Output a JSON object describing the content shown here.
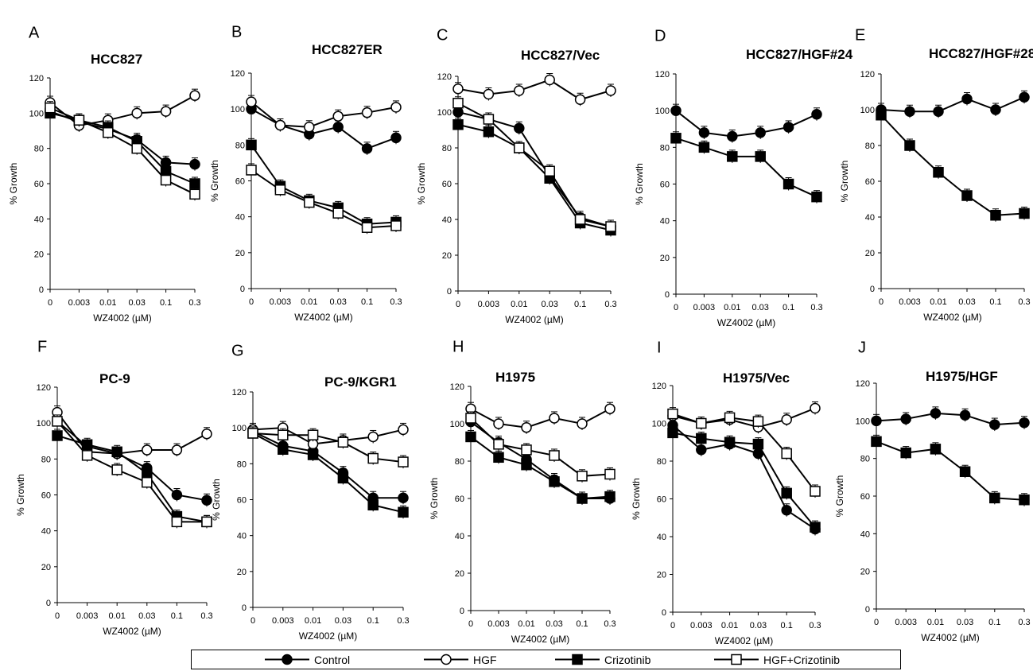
{
  "legend": {
    "items": [
      {
        "key": "control",
        "label": "Control",
        "marker": "filled-circle"
      },
      {
        "key": "hgf",
        "label": "HGF",
        "marker": "open-circle"
      },
      {
        "key": "crizotinib",
        "label": "Crizotinib",
        "marker": "filled-square"
      },
      {
        "key": "hgf_crizotinib",
        "label": "HGF+Crizotinib",
        "marker": "open-square"
      }
    ]
  },
  "colors": {
    "line": "#000000",
    "filled": "#000000",
    "open": "#ffffff"
  },
  "chart_data": [
    {
      "panel": "A",
      "title": "HCC827",
      "type": "line",
      "x": [
        "0",
        "0.003",
        "0.01",
        "0.03",
        "0.1",
        "0.3"
      ],
      "xlabel": "WZ4002 (µM)",
      "ylabel": "% Growth",
      "ylim": [
        0,
        120
      ],
      "yticks": [
        "0",
        "20",
        "40",
        "60",
        "80",
        "100",
        "120"
      ],
      "series": [
        {
          "key": "control",
          "values": [
            101,
            95,
            91,
            85,
            72,
            71
          ]
        },
        {
          "key": "hgf",
          "values": [
            106,
            93,
            96,
            100,
            101,
            110
          ]
        },
        {
          "key": "crizotinib",
          "values": [
            100,
            96,
            92,
            84,
            67,
            60
          ]
        },
        {
          "key": "hgf_crizotinib",
          "values": [
            103,
            96,
            89,
            80,
            62,
            54
          ]
        }
      ]
    },
    {
      "panel": "B",
      "title": "HCC827ER",
      "type": "line",
      "x": [
        "0",
        "0.003",
        "0.01",
        "0.03",
        "0.1",
        "0.3"
      ],
      "xlabel": "WZ4002 (µM)",
      "ylabel": "% Growth",
      "ylim": [
        0,
        120
      ],
      "yticks": [
        "0",
        "20",
        "40",
        "60",
        "80",
        "100",
        "120"
      ],
      "series": [
        {
          "key": "control",
          "values": [
            100,
            91,
            86,
            90,
            78,
            84
          ]
        },
        {
          "key": "hgf",
          "values": [
            104,
            91,
            90,
            96,
            98,
            101
          ]
        },
        {
          "key": "crizotinib",
          "values": [
            80,
            57,
            49,
            45,
            36,
            37
          ]
        },
        {
          "key": "hgf_crizotinib",
          "values": [
            66,
            55,
            48,
            42,
            34,
            35
          ]
        }
      ]
    },
    {
      "panel": "C",
      "title": "HCC827/Vec",
      "type": "line",
      "x": [
        "0",
        "0.003",
        "0.01",
        "0.03",
        "0.1",
        "0.3"
      ],
      "xlabel": "WZ4002 (µM)",
      "ylabel": "% Growth",
      "ylim": [
        0,
        120
      ],
      "yticks": [
        "0",
        "20",
        "40",
        "60",
        "80",
        "100",
        "120"
      ],
      "series": [
        {
          "key": "control",
          "values": [
            100,
            96,
            91,
            64,
            41,
            36
          ]
        },
        {
          "key": "hgf",
          "values": [
            113,
            110,
            112,
            118,
            107,
            112
          ]
        },
        {
          "key": "crizotinib",
          "values": [
            93,
            89,
            80,
            63,
            38,
            34
          ]
        },
        {
          "key": "hgf_crizotinib",
          "values": [
            105,
            96,
            80,
            67,
            40,
            36
          ]
        }
      ]
    },
    {
      "panel": "D",
      "title": "HCC827/HGF#24",
      "type": "line",
      "x": [
        "0",
        "0.003",
        "0.01",
        "0.03",
        "0.1",
        "0.3"
      ],
      "xlabel": "WZ4002 (µM)",
      "ylabel": "% Growth",
      "ylim": [
        0,
        120
      ],
      "yticks": [
        "0",
        "20",
        "40",
        "60",
        "80",
        "100",
        "120"
      ],
      "series": [
        {
          "key": "control",
          "values": [
            100,
            88,
            86,
            88,
            91,
            98
          ]
        },
        {
          "key": "crizotinib",
          "values": [
            85,
            80,
            75,
            75,
            60,
            53
          ]
        }
      ]
    },
    {
      "panel": "E",
      "title": "HCC827/HGF#28",
      "type": "line",
      "x": [
        "0",
        "0.003",
        "0.01",
        "0.03",
        "0.1",
        "0.3"
      ],
      "xlabel": "WZ4002 (µM)",
      "ylabel": "% Growth",
      "ylim": [
        0,
        120
      ],
      "yticks": [
        "0",
        "20",
        "40",
        "60",
        "80",
        "100",
        "120"
      ],
      "series": [
        {
          "key": "control",
          "values": [
            100,
            99,
            99,
            106,
            100,
            107
          ]
        },
        {
          "key": "crizotinib",
          "values": [
            97,
            80,
            65,
            52,
            41,
            42
          ]
        }
      ]
    },
    {
      "panel": "F",
      "title": "PC-9",
      "type": "line",
      "x": [
        "0",
        "0.003",
        "0.01",
        "0.03",
        "0.1",
        "0.3"
      ],
      "xlabel": "WZ4002 (µM)",
      "ylabel": "% Growth",
      "ylim": [
        0,
        120
      ],
      "yticks": [
        "0",
        "20",
        "40",
        "60",
        "80",
        "100",
        "120"
      ],
      "series": [
        {
          "key": "control",
          "values": [
            101,
            87,
            83,
            75,
            60,
            57
          ]
        },
        {
          "key": "hgf",
          "values": [
            106,
            84,
            83,
            85,
            85,
            94
          ]
        },
        {
          "key": "crizotinib",
          "values": [
            93,
            88,
            84,
            72,
            48,
            45
          ]
        },
        {
          "key": "hgf_crizotinib",
          "values": [
            101,
            82,
            74,
            67,
            45,
            45
          ]
        }
      ]
    },
    {
      "panel": "G",
      "title": "PC-9/KGR1",
      "type": "line",
      "x": [
        "0",
        "0.003",
        "0.01",
        "0.03",
        "0.1",
        "0.3"
      ],
      "xlabel": "WZ4002 (µM)",
      "ylabel": "% Growth",
      "ylim": [
        0,
        120
      ],
      "yticks": [
        "0",
        "20",
        "40",
        "60",
        "80",
        "100",
        "120"
      ],
      "series": [
        {
          "key": "control",
          "values": [
            98,
            90,
            87,
            75,
            61,
            61
          ]
        },
        {
          "key": "hgf",
          "values": [
            99,
            100,
            91,
            93,
            95,
            99
          ]
        },
        {
          "key": "crizotinib",
          "values": [
            97,
            88,
            85,
            72,
            57,
            53
          ]
        },
        {
          "key": "hgf_crizotinib",
          "values": [
            97,
            96,
            96,
            92,
            83,
            81
          ]
        }
      ]
    },
    {
      "panel": "H",
      "title": "H1975",
      "type": "line",
      "x": [
        "0",
        "0.003",
        "0.01",
        "0.03",
        "0.1",
        "0.3"
      ],
      "xlabel": "WZ4002 (µM)",
      "ylabel": "% Growth",
      "ylim": [
        0,
        120
      ],
      "yticks": [
        "0",
        "20",
        "40",
        "60",
        "80",
        "100",
        "120"
      ],
      "series": [
        {
          "key": "control",
          "values": [
            101,
            90,
            81,
            70,
            60,
            60
          ]
        },
        {
          "key": "hgf",
          "values": [
            108,
            100,
            98,
            103,
            100,
            108
          ]
        },
        {
          "key": "crizotinib",
          "values": [
            93,
            82,
            78,
            69,
            60,
            61
          ]
        },
        {
          "key": "hgf_crizotinib",
          "values": [
            103,
            89,
            86,
            83,
            72,
            73
          ]
        }
      ]
    },
    {
      "panel": "I",
      "title": "H1975/Vec",
      "type": "line",
      "x": [
        "0",
        "0.003",
        "0.01",
        "0.03",
        "0.1",
        "0.3"
      ],
      "xlabel": "WZ4002 (µM)",
      "ylabel": "% Growth",
      "ylim": [
        0,
        120
      ],
      "yticks": [
        "0",
        "20",
        "40",
        "60",
        "80",
        "100",
        "120"
      ],
      "series": [
        {
          "key": "control",
          "values": [
            99,
            86,
            89,
            84,
            54,
            44
          ]
        },
        {
          "key": "hgf",
          "values": [
            104,
            100,
            102,
            98,
            102,
            108
          ]
        },
        {
          "key": "crizotinib",
          "values": [
            95,
            92,
            90,
            89,
            63,
            45
          ]
        },
        {
          "key": "hgf_crizotinib",
          "values": [
            105,
            100,
            103,
            101,
            84,
            64
          ]
        }
      ]
    },
    {
      "panel": "J",
      "title": "H1975/HGF",
      "type": "line",
      "x": [
        "0",
        "0.003",
        "0.01",
        "0.03",
        "0.1",
        "0.3"
      ],
      "xlabel": "WZ4002 (µM)",
      "ylabel": "% Growth",
      "ylim": [
        0,
        120
      ],
      "yticks": [
        "0",
        "20",
        "40",
        "60",
        "80",
        "100",
        "120"
      ],
      "series": [
        {
          "key": "control",
          "values": [
            100,
            101,
            104,
            103,
            98,
            99
          ]
        },
        {
          "key": "crizotinib",
          "values": [
            89,
            83,
            85,
            73,
            59,
            58
          ]
        }
      ]
    }
  ]
}
